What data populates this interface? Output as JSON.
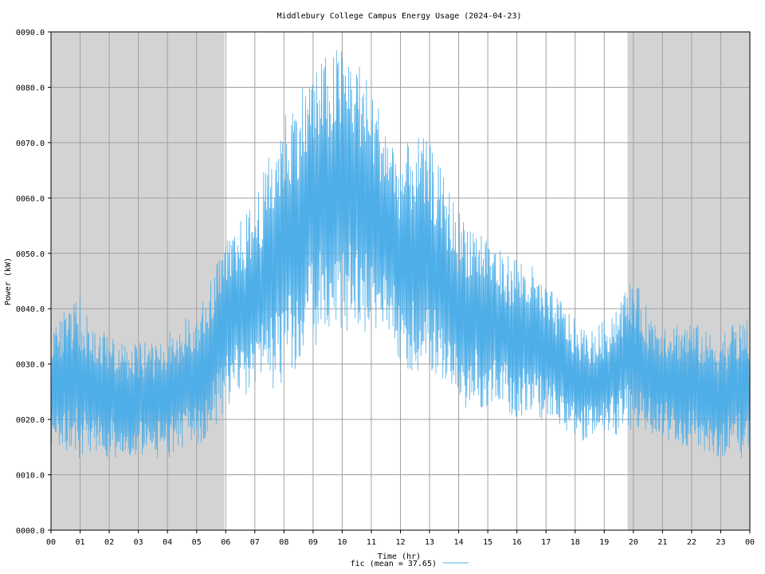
{
  "colors": {
    "series": "#4eaee8",
    "night_shade": "#d3d3d3",
    "grid": "#a0a0a0",
    "frame": "#000000",
    "background": "#ffffff"
  },
  "chart_data": {
    "type": "line",
    "title": "Middlebury College Campus Energy Usage (2024-04-23)",
    "xlabel": "Time (hr)",
    "ylabel": "Power (kW)",
    "xlim": [
      0,
      24
    ],
    "ylim": [
      0,
      90
    ],
    "grid": true,
    "legend_position": "bottom-center",
    "x_tick_labels": [
      "00",
      "01",
      "02",
      "03",
      "04",
      "05",
      "06",
      "07",
      "08",
      "09",
      "10",
      "11",
      "12",
      "13",
      "14",
      "15",
      "16",
      "17",
      "18",
      "19",
      "20",
      "21",
      "22",
      "23",
      "00"
    ],
    "y_tick_labels": [
      "0000.0",
      "0010.0",
      "0020.0",
      "0030.0",
      "0040.0",
      "0050.0",
      "0060.0",
      "0070.0",
      "0080.0",
      "0090.0"
    ],
    "y_tick_values": [
      0,
      10,
      20,
      30,
      40,
      50,
      60,
      70,
      80,
      90
    ],
    "shaded_ranges": [
      [
        0,
        5.95
      ],
      [
        19.8,
        24
      ]
    ],
    "series": [
      {
        "name": "fic",
        "legend_label": "fic (mean = 37.65)",
        "mean": 37.65,
        "x": [
          0.0,
          0.5,
          1.0,
          1.5,
          2.0,
          2.5,
          3.0,
          3.5,
          4.0,
          4.5,
          5.0,
          5.5,
          6.0,
          6.5,
          7.0,
          7.5,
          8.0,
          8.5,
          9.0,
          9.5,
          10.0,
          10.5,
          11.0,
          11.5,
          12.0,
          12.5,
          13.0,
          13.5,
          14.0,
          14.5,
          15.0,
          15.5,
          16.0,
          16.5,
          17.0,
          17.5,
          18.0,
          18.5,
          19.0,
          19.5,
          20.0,
          20.5,
          21.0,
          21.5,
          22.0,
          22.5,
          23.0,
          23.5,
          24.0
        ],
        "low": [
          15,
          13,
          13,
          13,
          13,
          13,
          13,
          13,
          13,
          14,
          15,
          17,
          22,
          24,
          24,
          25,
          26,
          29,
          33,
          35,
          35,
          35,
          35,
          35,
          30,
          28,
          28,
          25,
          22,
          22,
          22,
          22,
          20,
          20,
          20,
          18,
          16,
          16,
          16,
          17,
          18,
          17,
          17,
          15,
          15,
          14,
          13,
          13,
          13
        ],
        "high": [
          36,
          40,
          42,
          36,
          36,
          34,
          34,
          34,
          36,
          38,
          40,
          46,
          52,
          56,
          60,
          68,
          76,
          80,
          84,
          86,
          88,
          86,
          80,
          74,
          68,
          72,
          70,
          64,
          58,
          56,
          54,
          50,
          50,
          48,
          44,
          42,
          38,
          36,
          38,
          42,
          46,
          40,
          38,
          38,
          38,
          36,
          36,
          38,
          38
        ]
      }
    ]
  }
}
